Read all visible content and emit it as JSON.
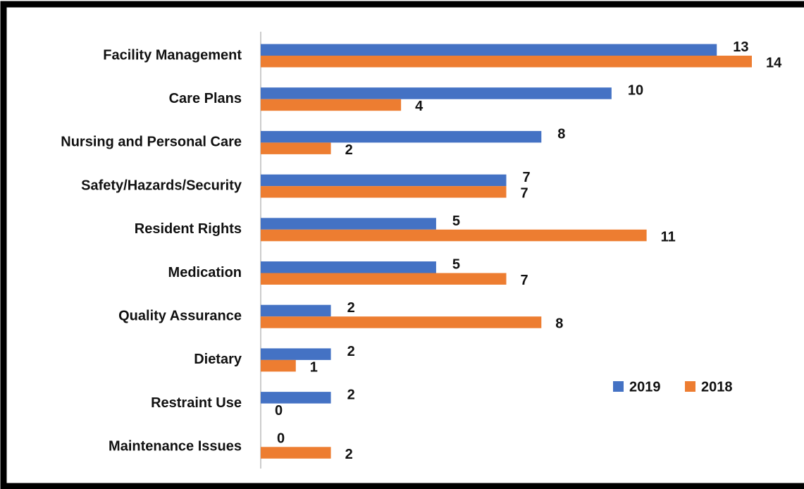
{
  "chart_data": {
    "type": "bar",
    "orientation": "horizontal",
    "categories": [
      "Facility Management",
      "Care Plans",
      "Nursing and Personal Care",
      "Safety/Hazards/Security",
      "Resident Rights",
      "Medication",
      "Quality Assurance",
      "Dietary",
      "Restraint Use",
      "Maintenance Issues"
    ],
    "series": [
      {
        "name": "2019",
        "color": "#4472c4",
        "values": [
          13,
          10,
          8,
          7,
          5,
          5,
          2,
          2,
          2,
          0
        ]
      },
      {
        "name": "2018",
        "color": "#ed7d31",
        "values": [
          14,
          4,
          2,
          7,
          11,
          7,
          8,
          1,
          0,
          2
        ]
      }
    ],
    "legend": "lower right"
  }
}
